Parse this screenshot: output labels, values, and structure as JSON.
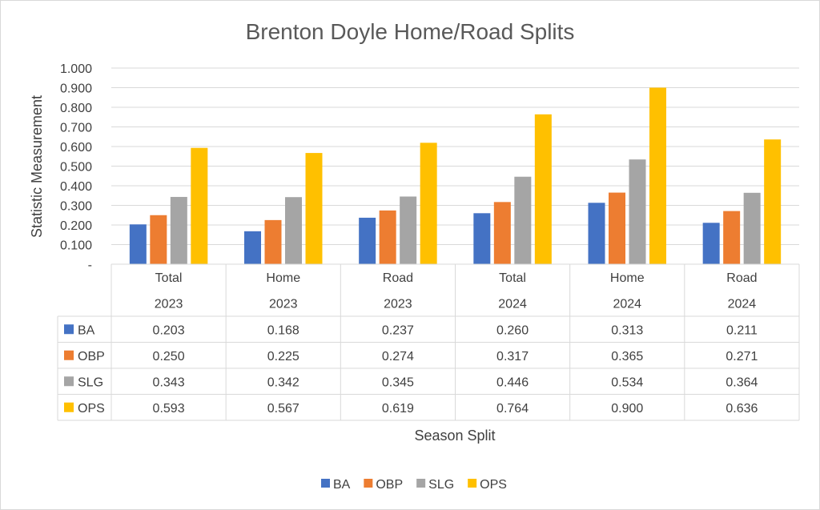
{
  "chart_data": {
    "type": "bar",
    "title": "Brenton Doyle Home/Road Splits",
    "xlabel": "Season Split",
    "ylabel": "Statistic Measurement",
    "ylim": [
      0,
      1.0
    ],
    "yticks": [
      "-",
      "0.100",
      "0.200",
      "0.300",
      "0.400",
      "0.500",
      "0.600",
      "0.700",
      "0.800",
      "0.900",
      "1.000"
    ],
    "grid": true,
    "legend_position": "bottom",
    "categories": [
      {
        "split": "Total",
        "year": "2023"
      },
      {
        "split": "Home",
        "year": "2023"
      },
      {
        "split": "Road",
        "year": "2023"
      },
      {
        "split": "Total",
        "year": "2024"
      },
      {
        "split": "Home",
        "year": "2024"
      },
      {
        "split": "Road",
        "year": "2024"
      }
    ],
    "series": [
      {
        "name": "BA",
        "color": "#4472c4",
        "values": [
          0.203,
          0.168,
          0.237,
          0.26,
          0.313,
          0.211
        ],
        "labels": [
          "0.203",
          "0.168",
          "0.237",
          "0.260",
          "0.313",
          "0.211"
        ]
      },
      {
        "name": "OBP",
        "color": "#ed7d31",
        "values": [
          0.25,
          0.225,
          0.274,
          0.317,
          0.365,
          0.271
        ],
        "labels": [
          "0.250",
          "0.225",
          "0.274",
          "0.317",
          "0.365",
          "0.271"
        ]
      },
      {
        "name": "SLG",
        "color": "#a5a5a5",
        "values": [
          0.343,
          0.342,
          0.345,
          0.446,
          0.534,
          0.364
        ],
        "labels": [
          "0.343",
          "0.342",
          "0.345",
          "0.446",
          "0.534",
          "0.364"
        ]
      },
      {
        "name": "OPS",
        "color": "#ffc000",
        "values": [
          0.593,
          0.567,
          0.619,
          0.764,
          0.9,
          0.636
        ],
        "labels": [
          "0.593",
          "0.567",
          "0.619",
          "0.764",
          "0.900",
          "0.636"
        ]
      }
    ]
  }
}
